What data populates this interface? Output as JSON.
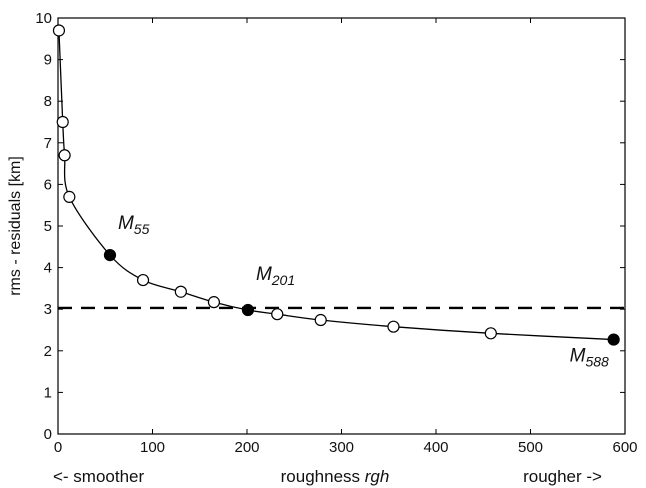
{
  "chart_data": {
    "type": "line",
    "title": "",
    "xlabel": {
      "left": "<-  smoother",
      "middle_prefix": "roughness ",
      "middle_italic": "rgh",
      "right": "rougher  ->"
    },
    "ylabel": "rms - residuals [km]",
    "xlim": [
      0,
      600
    ],
    "ylim": [
      0,
      10
    ],
    "xticks": [
      0,
      100,
      200,
      300,
      400,
      500,
      600
    ],
    "yticks": [
      0,
      1,
      2,
      3,
      4,
      5,
      6,
      7,
      8,
      9,
      10
    ],
    "grid": false,
    "series": [
      {
        "marker": "circle",
        "x": [
          1,
          5,
          7,
          12,
          55,
          90,
          130,
          165,
          201,
          232,
          278,
          355,
          458,
          588
        ],
        "y": [
          9.7,
          7.5,
          6.7,
          5.7,
          4.3,
          3.7,
          3.42,
          3.17,
          2.98,
          2.88,
          2.74,
          2.58,
          2.42,
          2.27
        ],
        "filled": [
          false,
          false,
          false,
          false,
          true,
          false,
          false,
          false,
          true,
          false,
          false,
          false,
          false,
          true
        ]
      }
    ],
    "hline": {
      "y": 3.03,
      "style": "dashed"
    },
    "annotations": [
      {
        "base": "M",
        "sub": "55",
        "x": 55,
        "y": 4.3
      },
      {
        "base": "M",
        "sub": "201",
        "x": 201,
        "y": 2.98
      },
      {
        "base": "M",
        "sub": "588",
        "x": 588,
        "y": 2.27
      }
    ]
  }
}
